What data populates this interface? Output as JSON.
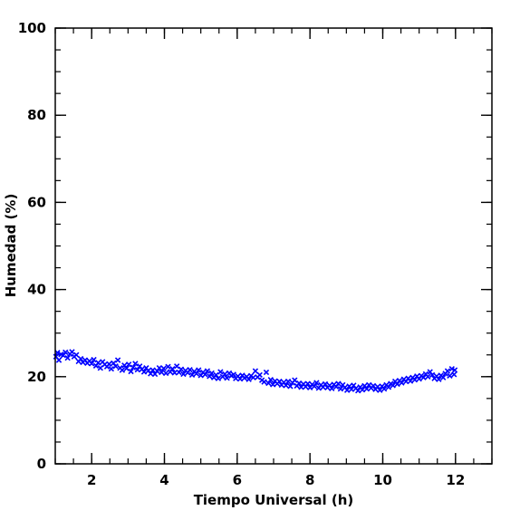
{
  "chart_data": {
    "type": "scatter",
    "title": "",
    "xlabel": "Tiempo Universal (h)",
    "ylabel": "Humedad (%)",
    "xlim": [
      1.0,
      13.0
    ],
    "ylim": [
      0,
      100
    ],
    "x_ticks": [
      2,
      4,
      6,
      8,
      10,
      12
    ],
    "y_ticks": [
      0,
      20,
      40,
      60,
      80,
      100
    ],
    "x_tick_labels": [
      "2",
      "4",
      "6",
      "8",
      "10",
      "12"
    ],
    "y_tick_labels": [
      "0",
      "20",
      "40",
      "60",
      "80",
      "100"
    ],
    "grid": false,
    "marker": "x",
    "marker_color": "#0000ff",
    "series": [
      {
        "points": [
          [
            1.02,
            24.6
          ],
          [
            1.06,
            25.5
          ],
          [
            1.1,
            23.8
          ],
          [
            1.16,
            25.1
          ],
          [
            1.22,
            24.9
          ],
          [
            1.28,
            25.6
          ],
          [
            1.34,
            24.3
          ],
          [
            1.4,
            25.2
          ],
          [
            1.46,
            25.7
          ],
          [
            1.52,
            24.6
          ],
          [
            1.58,
            25.0
          ],
          [
            1.64,
            23.5
          ],
          [
            1.7,
            24.1
          ],
          [
            1.76,
            23.3
          ],
          [
            1.82,
            23.8
          ],
          [
            1.88,
            23.1
          ],
          [
            1.94,
            23.6
          ],
          [
            2.0,
            23.0
          ],
          [
            2.06,
            23.9
          ],
          [
            2.12,
            22.5
          ],
          [
            2.18,
            23.2
          ],
          [
            2.24,
            22.0
          ],
          [
            2.3,
            23.4
          ],
          [
            2.36,
            22.8
          ],
          [
            2.42,
            22.3
          ],
          [
            2.48,
            22.9
          ],
          [
            2.54,
            21.8
          ],
          [
            2.6,
            23.1
          ],
          [
            2.66,
            22.4
          ],
          [
            2.72,
            23.8
          ],
          [
            2.78,
            22.0
          ],
          [
            2.84,
            21.5
          ],
          [
            2.9,
            22.6
          ],
          [
            2.96,
            21.9
          ],
          [
            3.02,
            22.8
          ],
          [
            3.08,
            21.2
          ],
          [
            3.14,
            22.1
          ],
          [
            3.2,
            23.0
          ],
          [
            3.26,
            21.6
          ],
          [
            3.32,
            22.4
          ],
          [
            3.38,
            21.7
          ],
          [
            3.44,
            21.1
          ],
          [
            3.5,
            22.0
          ],
          [
            3.56,
            21.4
          ],
          [
            3.62,
            20.7
          ],
          [
            3.68,
            21.5
          ],
          [
            3.74,
            20.6
          ],
          [
            3.8,
            21.3
          ],
          [
            3.86,
            22.0
          ],
          [
            3.92,
            21.0
          ],
          [
            3.98,
            21.9
          ],
          [
            4.04,
            20.8
          ],
          [
            4.1,
            22.3
          ],
          [
            4.16,
            21.1
          ],
          [
            4.22,
            21.8
          ],
          [
            4.28,
            20.9
          ],
          [
            4.34,
            22.4
          ],
          [
            4.4,
            21.0
          ],
          [
            4.46,
            21.7
          ],
          [
            4.52,
            20.6
          ],
          [
            4.58,
            21.4
          ],
          [
            4.64,
            20.9
          ],
          [
            4.7,
            21.6
          ],
          [
            4.76,
            20.4
          ],
          [
            4.82,
            21.2
          ],
          [
            4.88,
            20.7
          ],
          [
            4.94,
            21.5
          ],
          [
            5.0,
            20.3
          ],
          [
            5.06,
            21.0
          ],
          [
            5.12,
            20.5
          ],
          [
            5.18,
            21.3
          ],
          [
            5.24,
            20.1
          ],
          [
            5.3,
            20.8
          ],
          [
            5.36,
            19.8
          ],
          [
            5.42,
            20.4
          ],
          [
            5.48,
            19.6
          ],
          [
            5.54,
            21.1
          ],
          [
            5.6,
            20.0
          ],
          [
            5.66,
            20.6
          ],
          [
            5.72,
            19.7
          ],
          [
            5.78,
            20.8
          ],
          [
            5.84,
            20.2
          ],
          [
            5.9,
            20.5
          ],
          [
            5.96,
            19.6
          ],
          [
            6.02,
            20.1
          ],
          [
            6.08,
            19.5
          ],
          [
            6.14,
            20.3
          ],
          [
            6.2,
            19.7
          ],
          [
            6.26,
            20.0
          ],
          [
            6.32,
            19.4
          ],
          [
            6.38,
            20.2
          ],
          [
            6.44,
            19.8
          ],
          [
            6.5,
            21.3
          ],
          [
            6.56,
            19.9
          ],
          [
            6.62,
            20.4
          ],
          [
            6.68,
            19.2
          ],
          [
            6.74,
            18.8
          ],
          [
            6.8,
            21.0
          ],
          [
            6.86,
            18.5
          ],
          [
            6.92,
            19.3
          ],
          [
            6.98,
            18.2
          ],
          [
            7.04,
            19.0
          ],
          [
            7.1,
            18.4
          ],
          [
            7.16,
            18.9
          ],
          [
            7.22,
            18.1
          ],
          [
            7.28,
            18.7
          ],
          [
            7.34,
            18.0
          ],
          [
            7.4,
            18.9
          ],
          [
            7.46,
            17.8
          ],
          [
            7.52,
            18.6
          ],
          [
            7.58,
            19.2
          ],
          [
            7.64,
            17.9
          ],
          [
            7.7,
            18.5
          ],
          [
            7.76,
            17.6
          ],
          [
            7.82,
            18.3
          ],
          [
            7.88,
            17.7
          ],
          [
            7.94,
            18.4
          ],
          [
            8.0,
            17.5
          ],
          [
            8.06,
            18.2
          ],
          [
            8.12,
            17.8
          ],
          [
            8.18,
            18.6
          ],
          [
            8.24,
            17.4
          ],
          [
            8.3,
            18.1
          ],
          [
            8.36,
            17.6
          ],
          [
            8.42,
            18.3
          ],
          [
            8.48,
            17.5
          ],
          [
            8.54,
            18.0
          ],
          [
            8.6,
            17.3
          ],
          [
            8.66,
            18.2
          ],
          [
            8.72,
            17.7
          ],
          [
            8.78,
            18.4
          ],
          [
            8.84,
            17.2
          ],
          [
            8.9,
            18.1
          ],
          [
            8.96,
            17.5
          ],
          [
            9.02,
            16.9
          ],
          [
            9.08,
            17.8
          ],
          [
            9.14,
            17.1
          ],
          [
            9.2,
            18.0
          ],
          [
            9.26,
            17.3
          ],
          [
            9.32,
            16.8
          ],
          [
            9.38,
            17.6
          ],
          [
            9.44,
            17.0
          ],
          [
            9.5,
            17.9
          ],
          [
            9.56,
            17.2
          ],
          [
            9.62,
            18.1
          ],
          [
            9.68,
            17.4
          ],
          [
            9.74,
            17.9
          ],
          [
            9.8,
            17.1
          ],
          [
            9.86,
            17.7
          ],
          [
            9.92,
            16.9
          ],
          [
            9.98,
            17.8
          ],
          [
            10.04,
            17.2
          ],
          [
            10.1,
            18.1
          ],
          [
            10.16,
            17.6
          ],
          [
            10.22,
            18.4
          ],
          [
            10.28,
            18.0
          ],
          [
            10.34,
            18.9
          ],
          [
            10.4,
            18.3
          ],
          [
            10.46,
            19.1
          ],
          [
            10.52,
            18.6
          ],
          [
            10.58,
            19.4
          ],
          [
            10.64,
            18.9
          ],
          [
            10.7,
            19.6
          ],
          [
            10.76,
            19.0
          ],
          [
            10.82,
            19.8
          ],
          [
            10.88,
            19.3
          ],
          [
            10.94,
            20.1
          ],
          [
            11.0,
            19.5
          ],
          [
            11.06,
            20.2
          ],
          [
            11.12,
            19.8
          ],
          [
            11.18,
            20.6
          ],
          [
            11.24,
            20.0
          ],
          [
            11.3,
            21.1
          ],
          [
            11.36,
            20.4
          ],
          [
            11.42,
            19.6
          ],
          [
            11.48,
            20.1
          ],
          [
            11.54,
            19.4
          ],
          [
            11.6,
            20.3
          ],
          [
            11.66,
            19.8
          ],
          [
            11.72,
            20.7
          ],
          [
            11.78,
            21.3
          ],
          [
            11.84,
            20.2
          ],
          [
            11.9,
            21.8
          ],
          [
            11.96,
            20.5
          ],
          [
            11.98,
            21.5
          ]
        ]
      }
    ]
  }
}
